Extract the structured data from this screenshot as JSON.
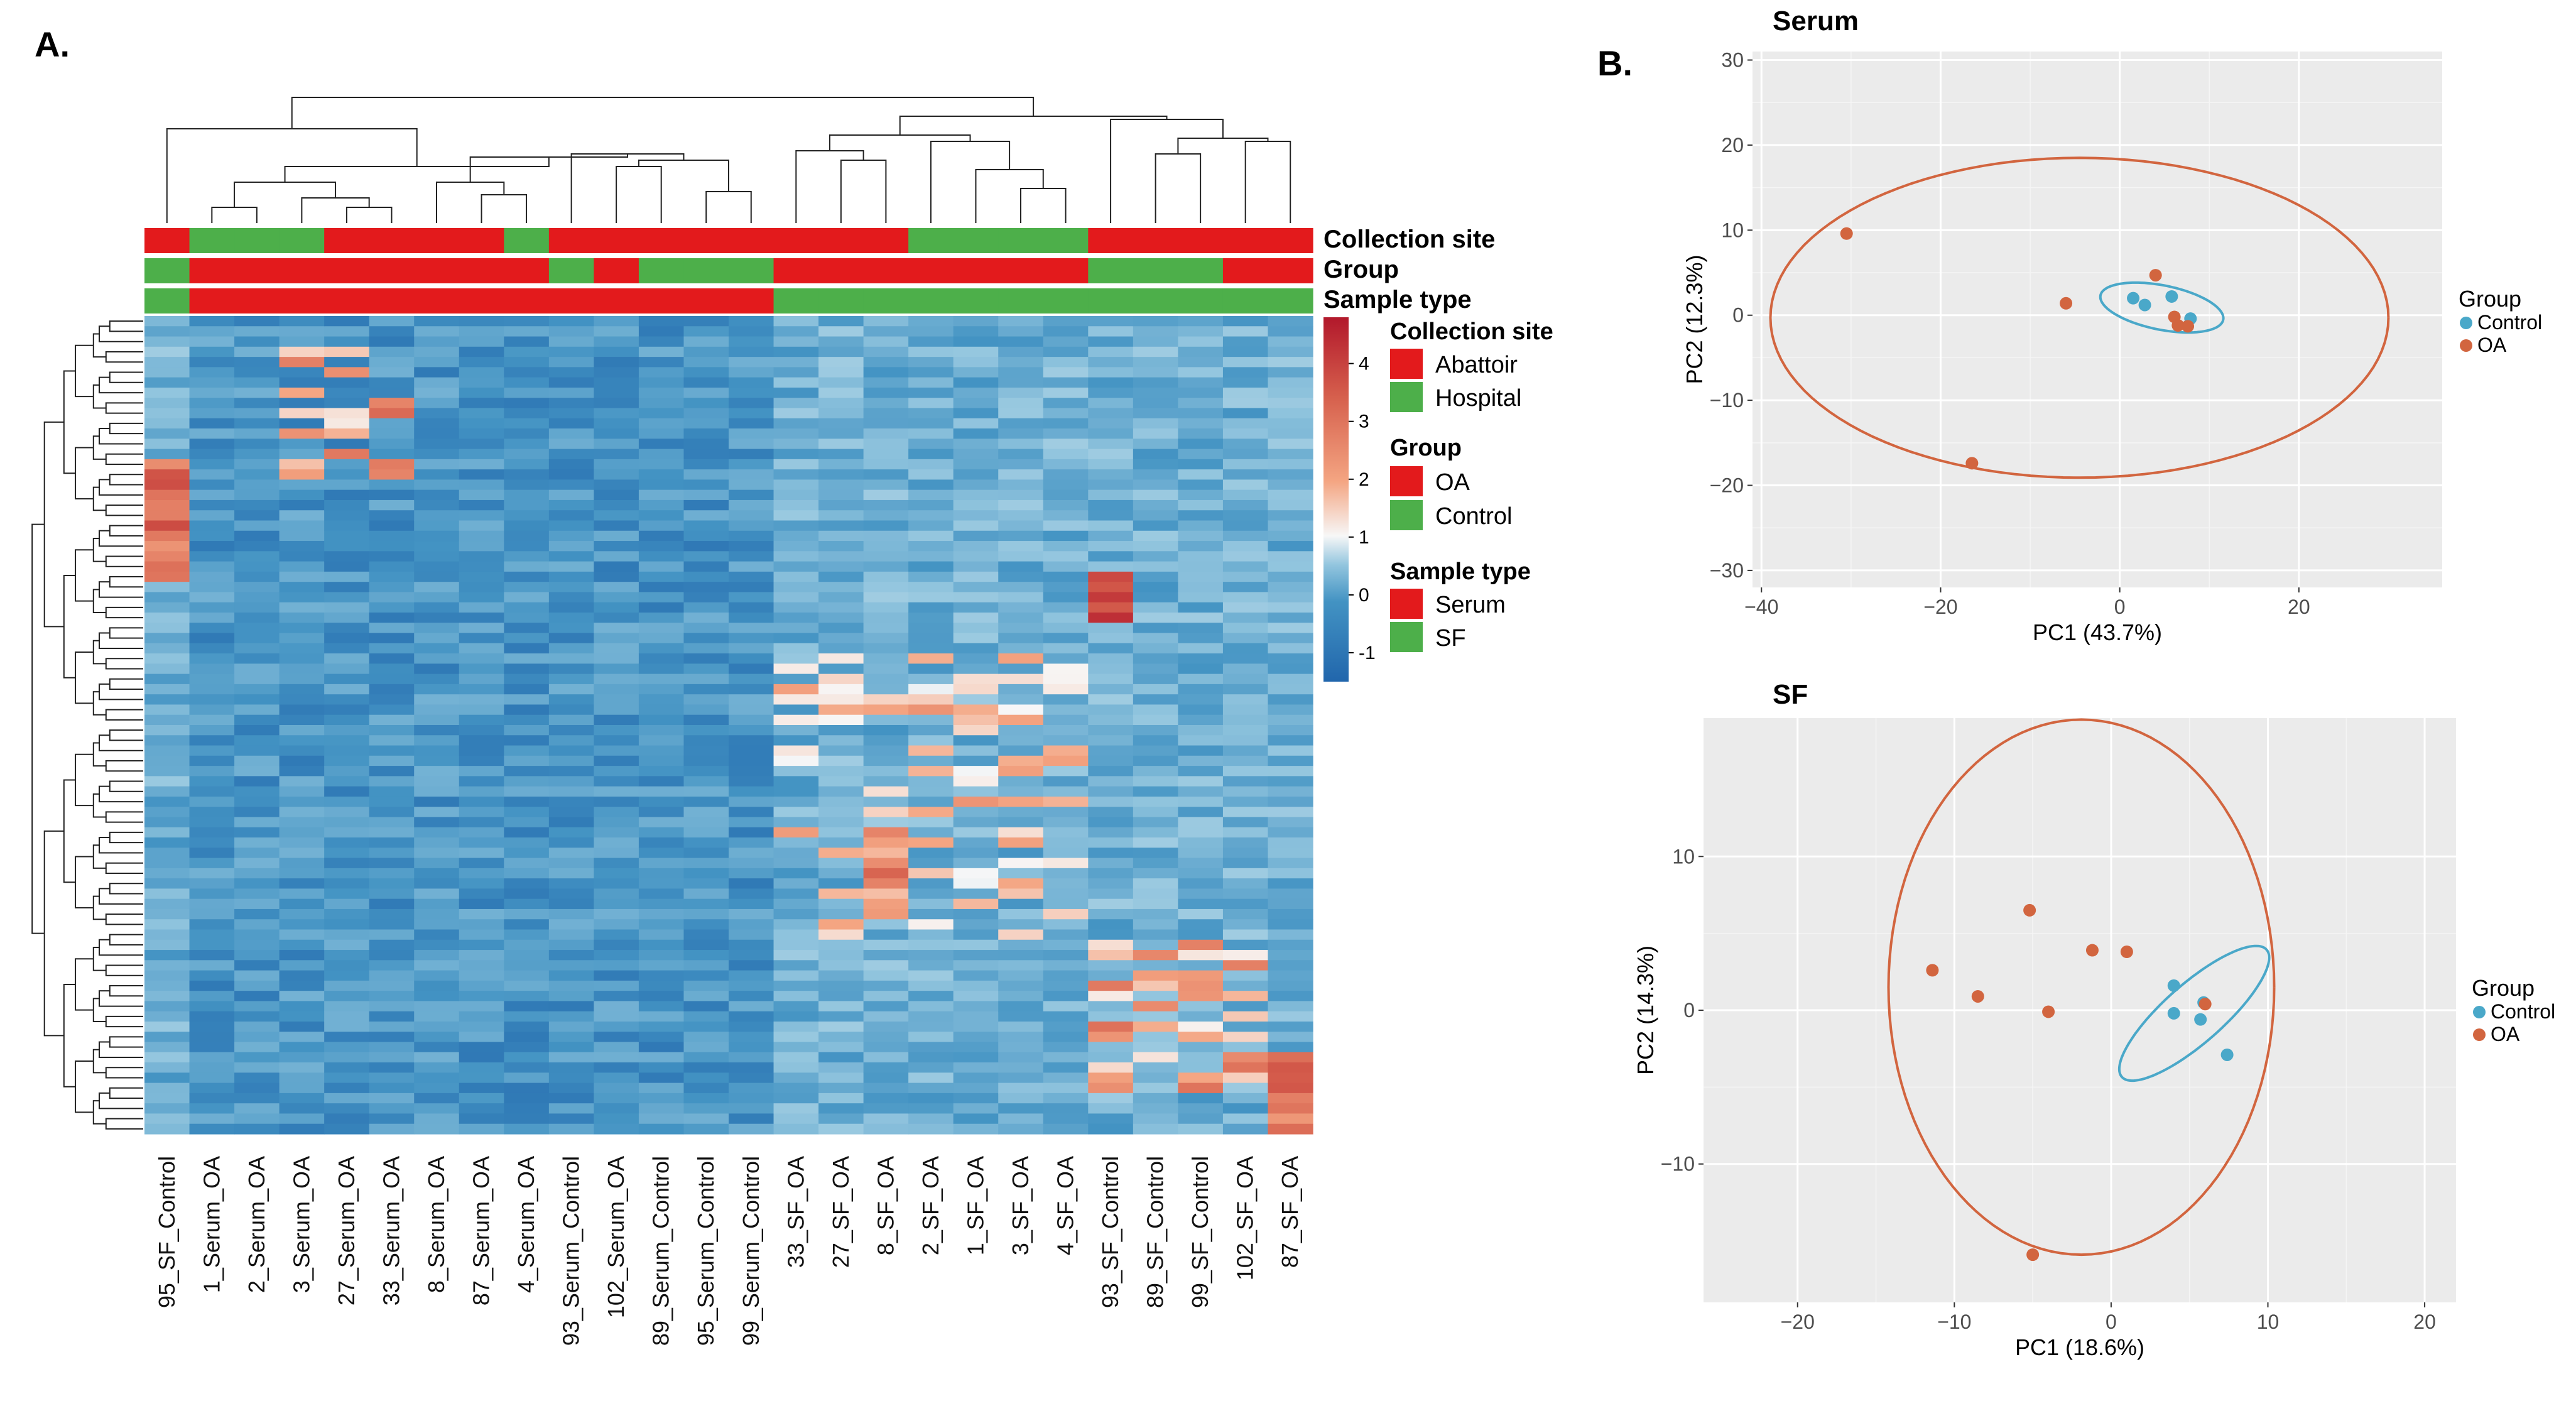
{
  "panel_labels": {
    "a": "A.",
    "b": "B."
  },
  "heatmap": {
    "annotation_rows": [
      "Collection site",
      "Group",
      "Sample type"
    ],
    "legend": {
      "collection_site_title": "Collection site",
      "abattoir": "Abattoir",
      "hospital": "Hospital",
      "group_title": "Group",
      "oa": "OA",
      "control": "Control",
      "sample_type_title": "Sample type",
      "serum": "Serum",
      "sf": "SF"
    },
    "colors": {
      "red": "#e31a1c",
      "green": "#4daf4a",
      "low": "#2166ac",
      "mid": "#f7f7f7",
      "high": "#b2182b"
    },
    "colorbar_ticks": [
      "4",
      "3",
      "2",
      "1",
      "0",
      "-1"
    ],
    "columns": [
      "95_SF_Control",
      "1_Serum_OA",
      "2_Serum_OA",
      "3_Serum_OA",
      "27_Serum_OA",
      "33_Serum_OA",
      "8_Serum_OA",
      "87_Serum_OA",
      "4_Serum_OA",
      "93_Serum_Control",
      "102_Serum_OA",
      "89_Serum_Control",
      "95_Serum_Control",
      "99_Serum_Control",
      "33_SF_OA",
      "27_SF_OA",
      "8_SF_OA",
      "2_SF_OA",
      "1_SF_OA",
      "3_SF_OA",
      "4_SF_OA",
      "93_SF_Control",
      "89_SF_Control",
      "99_SF_Control",
      "102_SF_OA",
      "87_SF_OA"
    ],
    "collection_site": [
      "Abattoir",
      "Hospital",
      "Hospital",
      "Hospital",
      "Abattoir",
      "Abattoir",
      "Abattoir",
      "Abattoir",
      "Hospital",
      "Abattoir",
      "Abattoir",
      "Abattoir",
      "Abattoir",
      "Abattoir",
      "Abattoir",
      "Abattoir",
      "Abattoir",
      "Hospital",
      "Hospital",
      "Hospital",
      "Hospital",
      "Abattoir",
      "Abattoir",
      "Abattoir",
      "Abattoir",
      "Abattoir"
    ],
    "group": [
      "Control",
      "OA",
      "OA",
      "OA",
      "OA",
      "OA",
      "OA",
      "OA",
      "OA",
      "Control",
      "OA",
      "Control",
      "Control",
      "Control",
      "OA",
      "OA",
      "OA",
      "OA",
      "OA",
      "OA",
      "OA",
      "Control",
      "Control",
      "Control",
      "OA",
      "OA"
    ],
    "sample_type": [
      "SF",
      "Serum",
      "Serum",
      "Serum",
      "Serum",
      "Serum",
      "Serum",
      "Serum",
      "Serum",
      "Serum",
      "Serum",
      "Serum",
      "Serum",
      "Serum",
      "SF",
      "SF",
      "SF",
      "SF",
      "SF",
      "SF",
      "SF",
      "SF",
      "SF",
      "SF",
      "SF",
      "SF"
    ],
    "n_rows": 80
  },
  "chart_data": [
    {
      "type": "scatter",
      "title": "Serum",
      "xlabel": "PC1 (43.7%)",
      "ylabel": "PC2 (12.3%)",
      "xlim": [
        -41,
        36
      ],
      "ylim": [
        -32,
        31
      ],
      "xticks": [
        -40,
        -20,
        0,
        20
      ],
      "yticks": [
        -30,
        -20,
        -10,
        0,
        10,
        20,
        30
      ],
      "legend_title": "Group",
      "series": [
        {
          "name": "Control",
          "color": "#4aa8c9",
          "points": [
            [
              1.5,
              2.0
            ],
            [
              2.8,
              1.2
            ],
            [
              5.8,
              2.2
            ],
            [
              7.9,
              -0.4
            ]
          ]
        },
        {
          "name": "OA",
          "color": "#d2653f",
          "points": [
            [
              -30.5,
              9.6
            ],
            [
              -16.5,
              -17.4
            ],
            [
              -6.0,
              1.4
            ],
            [
              4.0,
              4.7
            ],
            [
              6.1,
              -0.2
            ],
            [
              6.5,
              -1.2
            ],
            [
              7.6,
              -1.3
            ]
          ]
        }
      ],
      "ellipses": [
        {
          "group": "Control",
          "cx": 4.7,
          "cy": 0.9,
          "rx": 7.0,
          "ry": 2.6,
          "angle_deg": -12
        },
        {
          "group": "OA",
          "cx": -4.5,
          "cy": -0.3,
          "rx": 34.5,
          "ry": 18.8,
          "angle_deg": 0
        }
      ]
    },
    {
      "type": "scatter",
      "title": "SF",
      "xlabel": "PC1 (18.6%)",
      "ylabel": "PC2 (14.3%)",
      "xlim": [
        -26,
        22
      ],
      "ylim": [
        -19,
        19
      ],
      "xticks": [
        -20,
        -10,
        0,
        10,
        20
      ],
      "yticks": [
        -10,
        0,
        10
      ],
      "legend_title": "Group",
      "series": [
        {
          "name": "Control",
          "color": "#4aa8c9",
          "points": [
            [
              4.0,
              1.6
            ],
            [
              4.0,
              -0.2
            ],
            [
              5.7,
              -0.6
            ],
            [
              5.9,
              0.5
            ],
            [
              7.4,
              -2.9
            ]
          ]
        },
        {
          "name": "OA",
          "color": "#d2653f",
          "points": [
            [
              -11.4,
              2.6
            ],
            [
              -8.5,
              0.9
            ],
            [
              -5.2,
              6.5
            ],
            [
              -4.0,
              -0.1
            ],
            [
              -1.2,
              3.9
            ],
            [
              1.0,
              3.8
            ],
            [
              6.0,
              0.4
            ],
            [
              -5.0,
              -15.9
            ]
          ]
        }
      ],
      "ellipses": [
        {
          "group": "Control",
          "cx": 5.3,
          "cy": -0.2,
          "rx": 6.2,
          "ry": 1.9,
          "angle_deg": 42
        },
        {
          "group": "OA",
          "cx": -1.9,
          "cy": 1.5,
          "rx": 12.3,
          "ry": 17.4,
          "angle_deg": 0
        }
      ]
    }
  ]
}
